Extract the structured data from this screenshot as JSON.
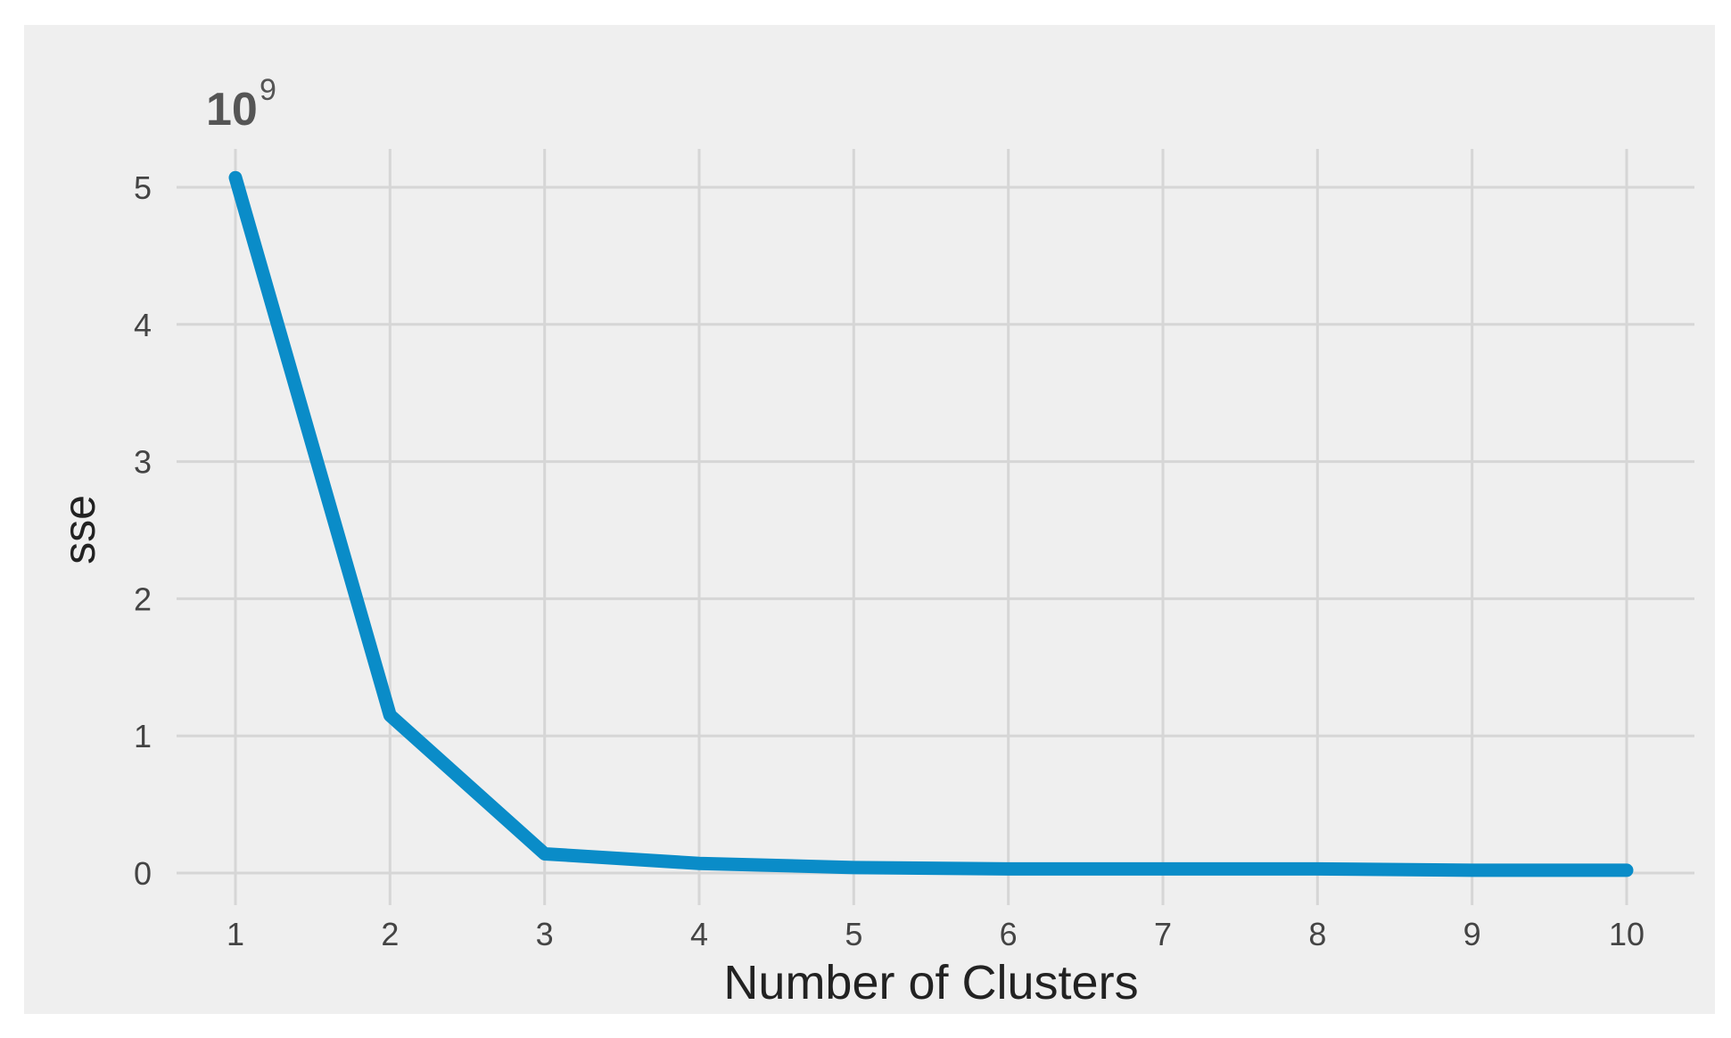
{
  "chart_data": {
    "type": "line",
    "title": "",
    "xlabel": "Number of Clusters",
    "ylabel": "sse",
    "y_scale_label": {
      "base": "10",
      "exponent": "9"
    },
    "x": [
      1,
      2,
      3,
      4,
      5,
      6,
      7,
      8,
      9,
      10
    ],
    "x_ticks": [
      "1",
      "2",
      "3",
      "4",
      "5",
      "6",
      "7",
      "8",
      "9",
      "10"
    ],
    "y_ticks": [
      "0",
      "1",
      "2",
      "3",
      "4",
      "5"
    ],
    "xlim": [
      1,
      10
    ],
    "ylim": [
      0,
      5
    ],
    "grid": true,
    "series": [
      {
        "values": [
          5.07,
          1.15,
          0.14,
          0.07,
          0.04,
          0.03,
          0.03,
          0.03,
          0.02,
          0.02
        ],
        "color": "#0a8cc8"
      }
    ],
    "colors": {
      "background": "#efefef",
      "grid": "#d6d6d6",
      "line": "#0a8cc8"
    }
  }
}
